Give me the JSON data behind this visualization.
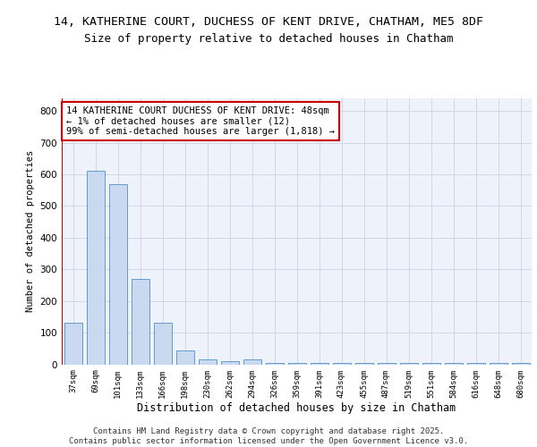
{
  "title_line1": "14, KATHERINE COURT, DUCHESS OF KENT DRIVE, CHATHAM, ME5 8DF",
  "title_line2": "Size of property relative to detached houses in Chatham",
  "xlabel": "Distribution of detached houses by size in Chatham",
  "ylabel": "Number of detached properties",
  "categories": [
    "37sqm",
    "69sqm",
    "101sqm",
    "133sqm",
    "166sqm",
    "198sqm",
    "230sqm",
    "262sqm",
    "294sqm",
    "326sqm",
    "359sqm",
    "391sqm",
    "423sqm",
    "455sqm",
    "487sqm",
    "519sqm",
    "551sqm",
    "584sqm",
    "616sqm",
    "648sqm",
    "680sqm"
  ],
  "values": [
    130,
    610,
    570,
    270,
    130,
    45,
    15,
    10,
    15,
    5,
    5,
    5,
    5,
    5,
    5,
    5,
    5,
    5,
    5,
    5,
    5
  ],
  "bar_color": "#c8d9f0",
  "bar_edge_color": "#6699cc",
  "highlight_line_color": "#cc0000",
  "annotation_text": "14 KATHERINE COURT DUCHESS OF KENT DRIVE: 48sqm\n← 1% of detached houses are smaller (12)\n99% of semi-detached houses are larger (1,818) →",
  "annotation_box_color": "#ffffff",
  "annotation_box_edge_color": "#cc0000",
  "ylim": [
    0,
    840
  ],
  "yticks": [
    0,
    100,
    200,
    300,
    400,
    500,
    600,
    700,
    800
  ],
  "grid_color": "#d0d8e8",
  "background_color": "#eef2fb",
  "footer_text": "Contains HM Land Registry data © Crown copyright and database right 2025.\nContains public sector information licensed under the Open Government Licence v3.0.",
  "title_fontsize": 9.5,
  "subtitle_fontsize": 9,
  "xlabel_fontsize": 8.5,
  "ylabel_fontsize": 7.5,
  "tick_fontsize": 6.5,
  "annotation_fontsize": 7.5,
  "footer_fontsize": 6.5
}
